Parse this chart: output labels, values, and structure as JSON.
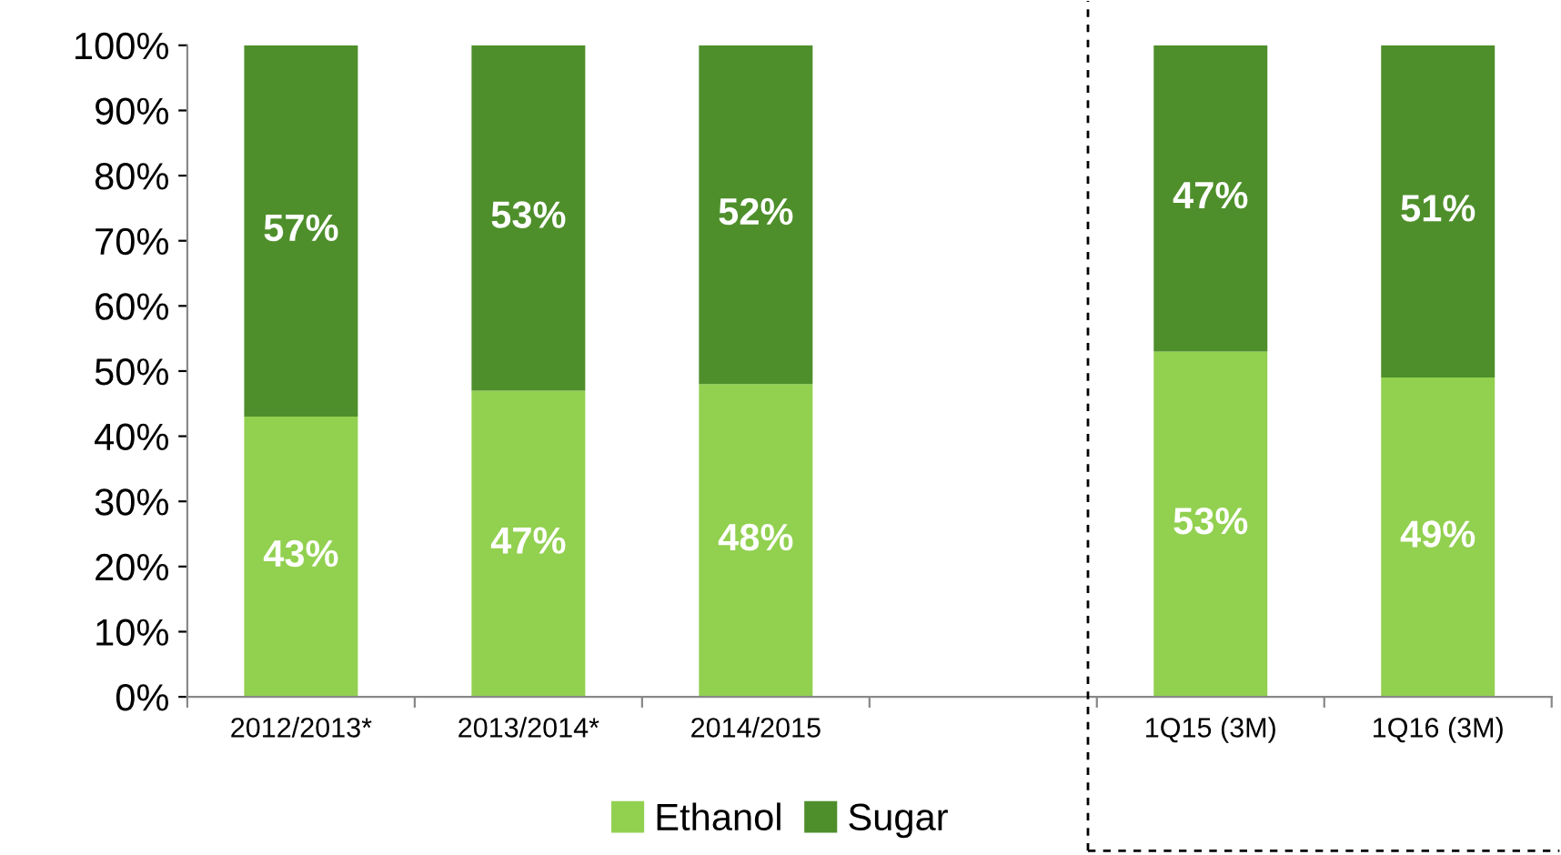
{
  "chart_data": {
    "type": "bar",
    "stacked": true,
    "categories": [
      "2012/2013*",
      "2013/2014*",
      "2014/2015",
      null,
      "1Q15 (3M)",
      "1Q16 (3M)"
    ],
    "series": [
      {
        "name": "Ethanol",
        "color": "#92d050",
        "values": [
          43,
          47,
          48,
          null,
          53,
          49
        ],
        "value_labels": [
          "43%",
          "47%",
          "48%",
          null,
          "53%",
          "49%"
        ]
      },
      {
        "name": "Sugar",
        "color": "#4e8f2b",
        "values": [
          57,
          53,
          52,
          null,
          47,
          51
        ],
        "value_labels": [
          "57%",
          "53%",
          "52%",
          null,
          "47%",
          "51%"
        ]
      }
    ],
    "ylim": [
      0,
      100
    ],
    "yticks": [
      {
        "value": 0,
        "label": "0%"
      },
      {
        "value": 10,
        "label": "10%"
      },
      {
        "value": 20,
        "label": "20%"
      },
      {
        "value": 30,
        "label": "30%"
      },
      {
        "value": 40,
        "label": "40%"
      },
      {
        "value": 50,
        "label": "50%"
      },
      {
        "value": 60,
        "label": "60%"
      },
      {
        "value": 70,
        "label": "70%"
      },
      {
        "value": 80,
        "label": "80%"
      },
      {
        "value": 90,
        "label": "90%"
      },
      {
        "value": 100,
        "label": "100%"
      }
    ],
    "legend": "bottom",
    "grid": false
  }
}
